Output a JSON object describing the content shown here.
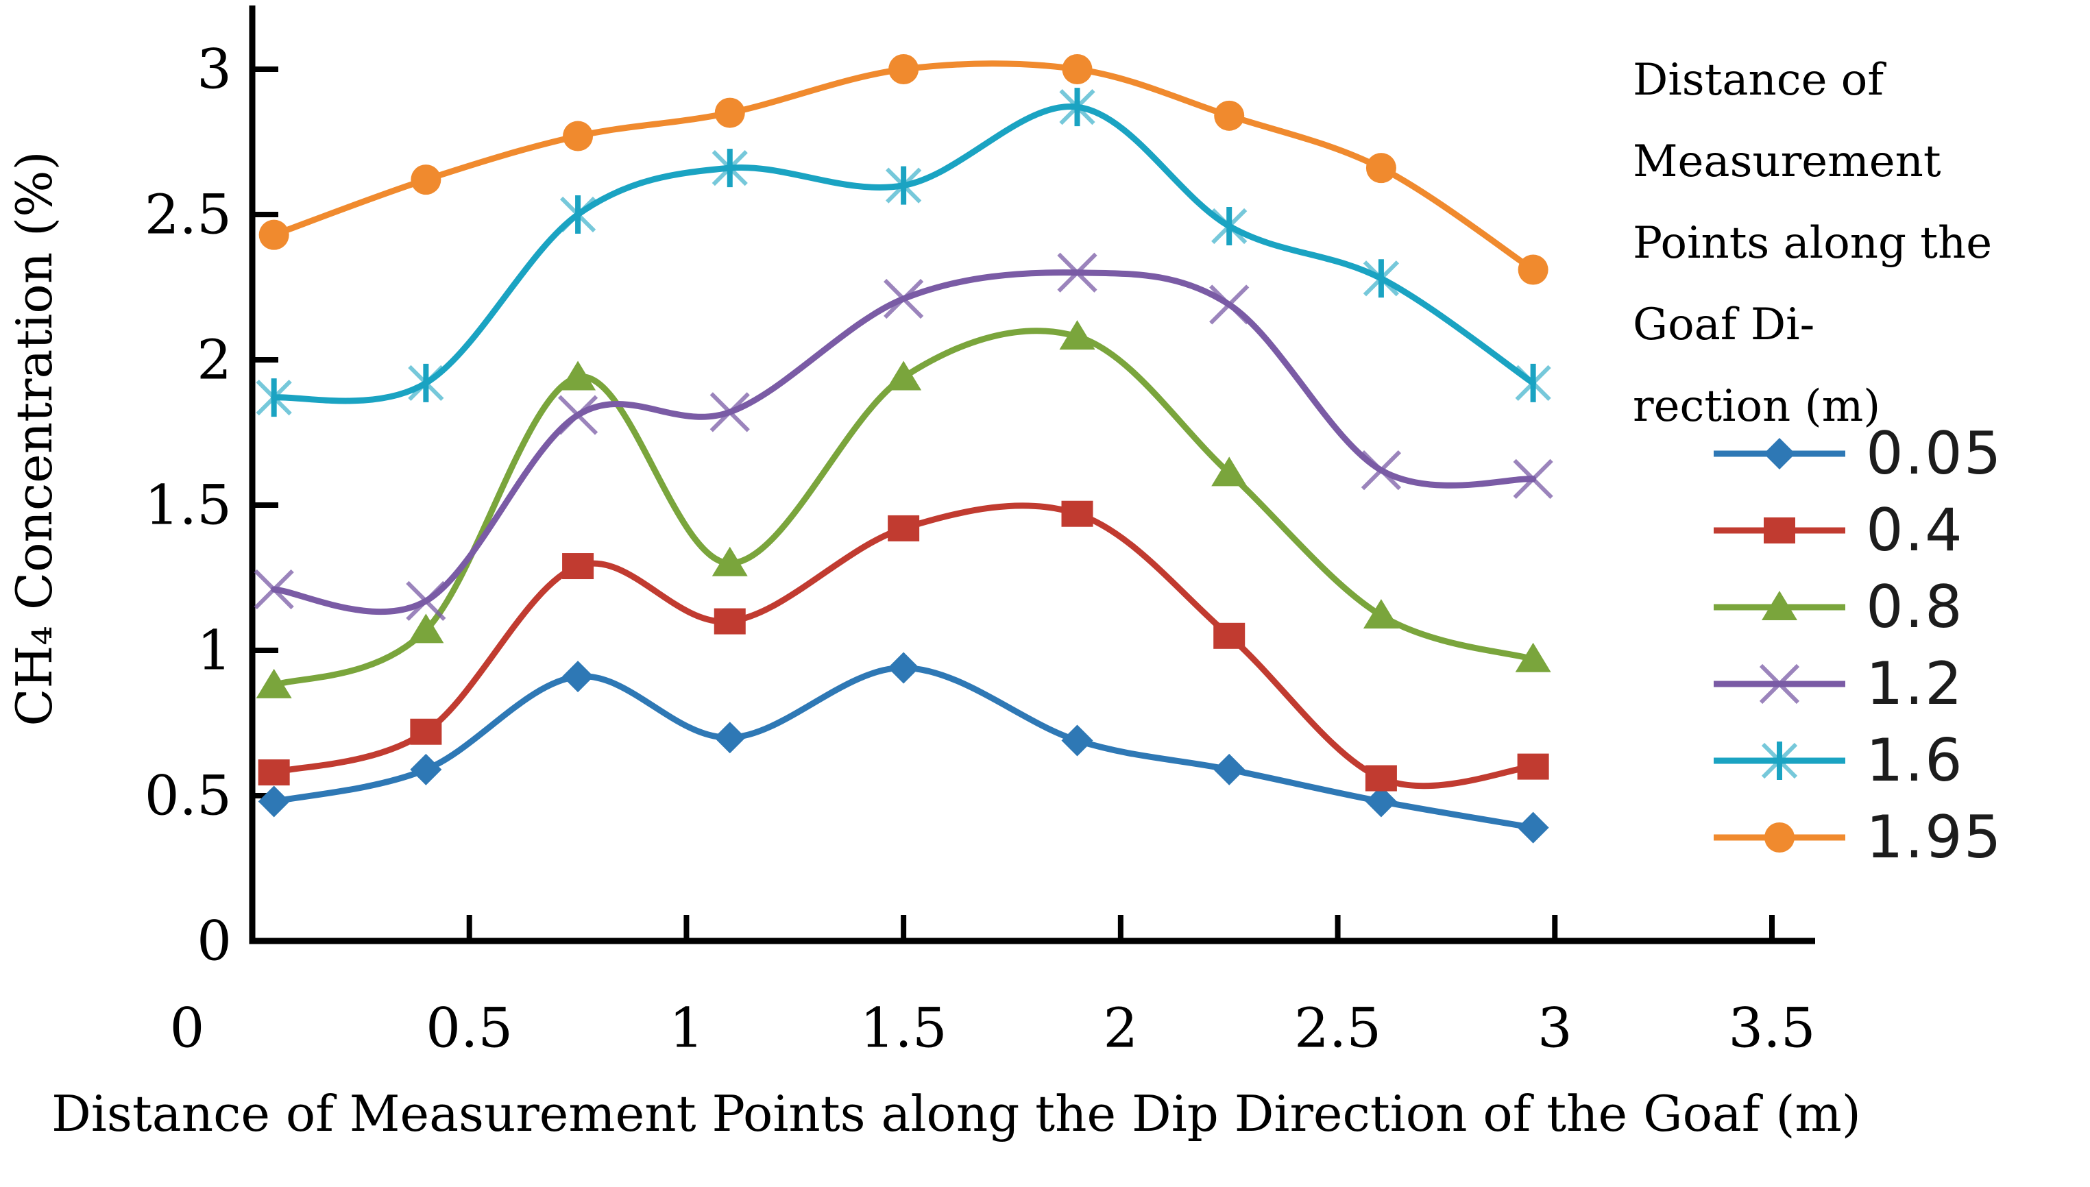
{
  "figure": {
    "legend": {
      "title_lines": [
        "Distance of Measurement",
        "Points along the Goaf Di-",
        "rection (m)"
      ]
    }
  },
  "chart_data": {
    "type": "line",
    "title": "",
    "xlabel": "Distance of Measurement Points along the Dip Direction of the Goaf (m)",
    "ylabel": "CH₄ Concentration (%)",
    "xlim": [
      0,
      3.5
    ],
    "ylim": [
      0,
      3
    ],
    "grid": false,
    "legend_position": "right",
    "legend_title": "Distance of Measurement Points along the Goaf Direction (m)",
    "x_ticks": [
      0,
      0.5,
      1,
      1.5,
      2,
      2.5,
      3,
      3.5
    ],
    "x_tick_labels": [
      "0",
      "0.5",
      "1",
      "1.5",
      "2",
      "2.5",
      "3",
      "3.5"
    ],
    "y_ticks": [
      0,
      0.5,
      1,
      1.5,
      2,
      2.5,
      3
    ],
    "y_tick_labels": [
      "0",
      "0.5",
      "1",
      "1.5",
      "2",
      "2.5",
      "3"
    ],
    "x": [
      0.05,
      0.4,
      0.75,
      1.1,
      1.5,
      1.9,
      2.25,
      2.6,
      2.95
    ],
    "series": [
      {
        "name": "0.05",
        "color": "#2e78b5",
        "marker": "diamond",
        "values": [
          0.48,
          0.59,
          0.91,
          0.7,
          0.94,
          0.69,
          0.59,
          0.48,
          0.39
        ]
      },
      {
        "name": "0.4",
        "color": "#c13b30",
        "marker": "square",
        "values": [
          0.58,
          0.72,
          1.29,
          1.1,
          1.42,
          1.47,
          1.05,
          0.56,
          0.6
        ]
      },
      {
        "name": "0.8",
        "color": "#7aa53c",
        "marker": "triangle",
        "values": [
          0.88,
          1.07,
          1.94,
          1.3,
          1.94,
          2.08,
          1.61,
          1.12,
          0.97
        ]
      },
      {
        "name": "1.2",
        "color": "#7a5ba5",
        "marker": "x",
        "values": [
          1.21,
          1.17,
          1.81,
          1.82,
          2.21,
          2.3,
          2.19,
          1.62,
          1.59
        ]
      },
      {
        "name": "1.6",
        "color": "#1aa3c2",
        "marker": "asterisk",
        "values": [
          1.87,
          1.92,
          2.5,
          2.66,
          2.6,
          2.87,
          2.46,
          2.28,
          1.92
        ]
      },
      {
        "name": "1.95",
        "color": "#f08a2e",
        "marker": "circle",
        "values": [
          2.43,
          2.62,
          2.77,
          2.85,
          3.0,
          3.0,
          2.84,
          2.66,
          2.31
        ]
      }
    ]
  }
}
